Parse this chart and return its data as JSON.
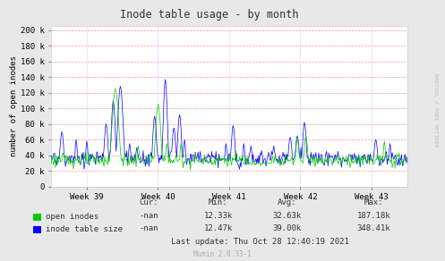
{
  "title": "Inode table usage - by month",
  "ylabel": "number of open inodes",
  "xtick_labels": [
    "Week 39",
    "Week 40",
    "Week 41",
    "Week 42",
    "Week 43"
  ],
  "ytick_values": [
    0,
    20000,
    40000,
    60000,
    80000,
    100000,
    120000,
    140000,
    160000,
    180000,
    200000
  ],
  "ytick_labels": [
    "0",
    "20 k",
    "40 k",
    "60 k",
    "80 k",
    "100 k",
    "120 k",
    "140 k",
    "160 k",
    "180 k",
    "200 k"
  ],
  "ymax": 205000,
  "color_green": "#00cc00",
  "color_blue": "#0000ff",
  "bg_color": "#e8e8e8",
  "plot_bg_color": "#ffffff",
  "grid_h_color": "#ff9999",
  "grid_v_color": "#aaaaff",
  "legend_label_green": "open inodes",
  "legend_label_blue": "inode table size",
  "stats_cur_green": "-nan",
  "stats_min_green": "12.33k",
  "stats_avg_green": "32.63k",
  "stats_max_green": "187.18k",
  "stats_cur_blue": "-nan",
  "stats_min_blue": "12.47k",
  "stats_avg_blue": "39.00k",
  "stats_max_blue": "348.41k",
  "last_update": "Last update: Thu Oct 28 12:40:19 2021",
  "munin_version": "Munin 2.0.33-1",
  "watermark": "RRDTOOL / TOBI OETIKER"
}
